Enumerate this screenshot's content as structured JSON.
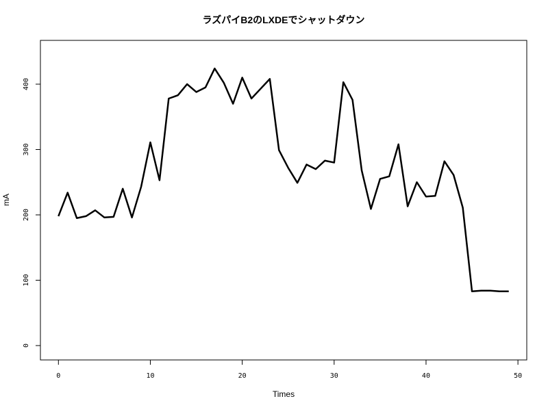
{
  "chart_data": {
    "type": "line",
    "title": "ラズパイB2のLXDEでシャットダウン",
    "x_label": "Times",
    "y_label": "mA",
    "x": [
      0,
      1,
      2,
      3,
      4,
      5,
      6,
      7,
      8,
      9,
      10,
      11,
      12,
      13,
      14,
      15,
      16,
      17,
      18,
      19,
      20,
      21,
      22,
      23,
      24,
      25,
      26,
      27,
      28,
      29,
      30,
      31,
      32,
      33,
      34,
      35,
      36,
      37,
      38,
      39,
      40,
      41,
      42,
      43,
      44,
      45,
      46,
      47,
      48,
      49
    ],
    "series": [
      {
        "color": "#000000",
        "values": [
          198,
          234,
          195,
          198,
          207,
          196,
          197,
          240,
          196,
          243,
          311,
          253,
          378,
          383,
          400,
          388,
          395,
          424,
          402,
          370,
          410,
          378,
          393,
          408,
          299,
          272,
          249,
          277,
          270,
          283,
          280,
          403,
          376,
          268,
          209,
          255,
          259,
          308,
          213,
          250,
          228,
          229,
          282,
          261,
          211,
          83,
          84,
          84,
          83,
          83
        ]
      }
    ],
    "xlim": [
      -1.96,
      50.96
    ],
    "ylim": [
      -22,
      467
    ],
    "xticks": [
      0,
      10,
      20,
      30,
      40,
      50
    ],
    "yticks": [
      0,
      100,
      200,
      300,
      400
    ]
  }
}
